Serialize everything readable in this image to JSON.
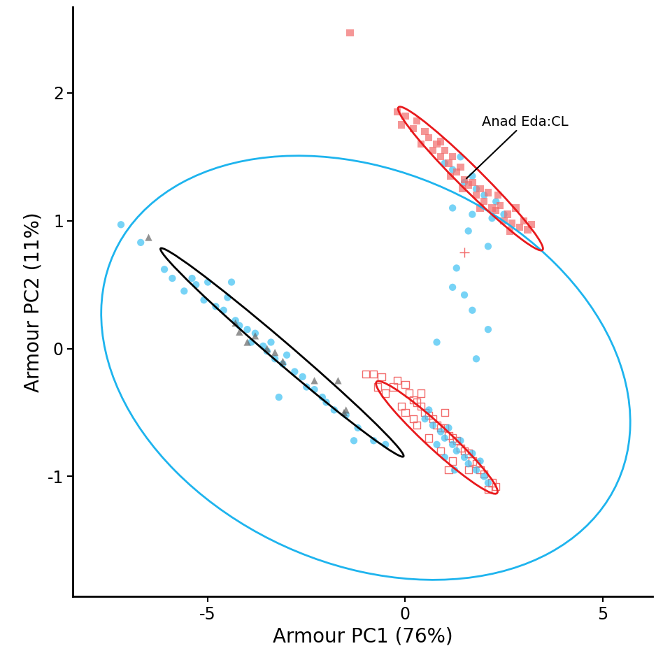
{
  "chart_data": {
    "type": "scatter",
    "x_label": "Armour PC1 (76%)",
    "y_label": "Armour PC2 (11%)",
    "xlim": [
      -8.42,
      6.27
    ],
    "ylim": [
      -1.94,
      2.67
    ],
    "xticks": [
      -5,
      0,
      5
    ],
    "yticks": [
      -1,
      0,
      1,
      2
    ],
    "grid": false,
    "series": [
      {
        "color": "#3ec1f3",
        "marker": "circle",
        "x": [
          -6.1,
          -5.9,
          -5.6,
          -5.3,
          -5.1,
          -5.0,
          -4.8,
          -4.6,
          -4.5,
          -4.3,
          -4.2,
          -4.0,
          -3.9,
          -3.8,
          -3.6,
          -3.5,
          -3.4,
          -3.3,
          -3.1,
          -3.0,
          -2.8,
          -2.6,
          -2.5,
          -2.3,
          -2.1,
          -2.0,
          -1.8,
          -1.5,
          -1.2,
          -0.8,
          -0.5,
          -1.3,
          -4.4,
          -5.4,
          -3.2,
          -7.2,
          -6.7,
          1.2,
          1.5,
          1.8,
          2.0,
          2.3,
          1.0,
          1.4,
          2.5,
          2.2,
          1.7,
          1.2,
          1.7,
          1.6,
          2.1,
          1.3,
          1.2,
          1.5,
          1.7,
          0.8,
          1.8,
          2.1,
          0.5,
          0.7,
          0.9,
          1.0,
          1.2,
          1.3,
          1.5,
          1.6,
          1.8,
          2.0,
          2.1,
          1.1,
          1.4,
          1.7,
          0.8,
          1.9,
          1.0,
          0.6,
          1.25
        ],
        "y": [
          0.62,
          0.55,
          0.45,
          0.5,
          0.38,
          0.52,
          0.33,
          0.3,
          0.4,
          0.22,
          0.18,
          0.15,
          0.05,
          0.12,
          0.02,
          -0.02,
          0.05,
          -0.08,
          -0.12,
          -0.05,
          -0.18,
          -0.22,
          -0.3,
          -0.32,
          -0.38,
          -0.42,
          -0.48,
          -0.52,
          -0.62,
          -0.72,
          -0.75,
          -0.72,
          0.52,
          0.55,
          -0.38,
          0.97,
          0.83,
          1.4,
          1.3,
          1.25,
          1.2,
          1.15,
          1.45,
          1.5,
          1.05,
          1.02,
          1.35,
          1.1,
          1.05,
          0.92,
          0.8,
          0.63,
          0.48,
          0.42,
          0.3,
          0.05,
          -0.08,
          0.15,
          -0.55,
          -0.6,
          -0.65,
          -0.7,
          -0.75,
          -0.8,
          -0.85,
          -0.9,
          -0.95,
          -1.0,
          -1.05,
          -0.62,
          -0.72,
          -0.82,
          -0.75,
          -0.88,
          -0.85,
          -0.48,
          -0.95
        ]
      },
      {
        "color": "#f26b6b",
        "marker": "square",
        "x": [
          -0.1,
          0.2,
          0.3,
          0.6,
          0.7,
          0.8,
          0.9,
          1.0,
          1.1,
          1.2,
          1.3,
          1.4,
          1.5,
          1.6,
          1.7,
          1.8,
          1.9,
          2.0,
          2.1,
          2.2,
          2.3,
          2.4,
          2.5,
          2.6,
          2.7,
          2.9,
          3.0,
          3.2,
          2.8,
          0.5,
          0.9,
          1.15,
          1.45,
          1.9,
          2.35,
          0.4,
          0.0,
          -0.2,
          2.65,
          3.1,
          -1.4
        ],
        "y": [
          1.75,
          1.72,
          1.78,
          1.65,
          1.55,
          1.6,
          1.5,
          1.55,
          1.45,
          1.5,
          1.38,
          1.42,
          1.32,
          1.28,
          1.3,
          1.2,
          1.25,
          1.15,
          1.22,
          1.1,
          1.08,
          1.12,
          1.0,
          1.05,
          0.98,
          0.95,
          1.0,
          0.97,
          1.1,
          1.7,
          1.62,
          1.35,
          1.25,
          1.1,
          1.2,
          1.6,
          1.82,
          1.85,
          0.92,
          0.93,
          2.47
        ]
      },
      {
        "color": "#f26b6b",
        "marker": "square_open",
        "x": [
          -1.0,
          -0.8,
          -0.6,
          -0.3,
          -0.5,
          -0.2,
          0.0,
          0.1,
          0.2,
          0.3,
          0.4,
          0.5,
          0.6,
          0.7,
          0.8,
          0.9,
          1.0,
          1.1,
          1.2,
          1.3,
          1.4,
          1.5,
          1.6,
          1.7,
          1.8,
          1.9,
          2.0,
          2.2,
          2.3,
          0.3,
          0.6,
          0.9,
          1.2,
          -0.1,
          0.2,
          1.0,
          0.4,
          1.6,
          1.1,
          2.1,
          -0.7,
          0.0
        ],
        "y": [
          -0.2,
          -0.2,
          -0.22,
          -0.3,
          -0.35,
          -0.25,
          -0.28,
          -0.35,
          -0.4,
          -0.42,
          -0.45,
          -0.5,
          -0.52,
          -0.55,
          -0.6,
          -0.62,
          -0.62,
          -0.68,
          -0.7,
          -0.72,
          -0.78,
          -0.8,
          -0.82,
          -0.88,
          -0.9,
          -0.95,
          -0.98,
          -1.05,
          -1.08,
          -0.6,
          -0.7,
          -0.8,
          -0.88,
          -0.45,
          -0.55,
          -0.5,
          -0.35,
          -0.95,
          -0.95,
          -1.1,
          -0.3,
          -0.5
        ]
      },
      {
        "color": "#666666",
        "marker": "triangle",
        "x": [
          -6.5,
          -4.3,
          -4.2,
          -3.8,
          -3.5,
          -3.3,
          -3.1,
          -2.3,
          -1.7,
          -1.5,
          -1.55,
          -4.0
        ],
        "y": [
          0.87,
          0.2,
          0.13,
          0.1,
          0.0,
          -0.03,
          -0.1,
          -0.25,
          -0.25,
          -0.48,
          -0.5,
          0.05
        ]
      },
      {
        "color": "#f26b6b",
        "marker": "plus",
        "x": [
          1.5
        ],
        "y": [
          0.75
        ]
      }
    ],
    "ellipses": [
      {
        "color": "#1eb4ee",
        "major_axis": [
          [
            -7.7,
            0.3
          ],
          [
            5.7,
            -0.6
          ]
        ],
        "minor_radius": 1.6
      },
      {
        "color": "#000000",
        "major_axis": [
          [
            -6.2,
            0.78
          ],
          [
            -0.04,
            -0.84
          ]
        ],
        "minor_radius": 0.1
      },
      {
        "color": "#e8191c",
        "major_axis": [
          [
            -0.18,
            1.88
          ],
          [
            3.49,
            0.78
          ]
        ],
        "minor_radius": 0.12
      },
      {
        "color": "#e8191c",
        "major_axis": [
          [
            -0.74,
            -0.27
          ],
          [
            2.34,
            -1.12
          ]
        ],
        "minor_radius": 0.12
      }
    ],
    "annotations": [
      {
        "text": "Anad Eda:CL",
        "xy": [
          1.55,
          1.33
        ],
        "xytext": [
          1.95,
          1.72
        ]
      }
    ]
  }
}
